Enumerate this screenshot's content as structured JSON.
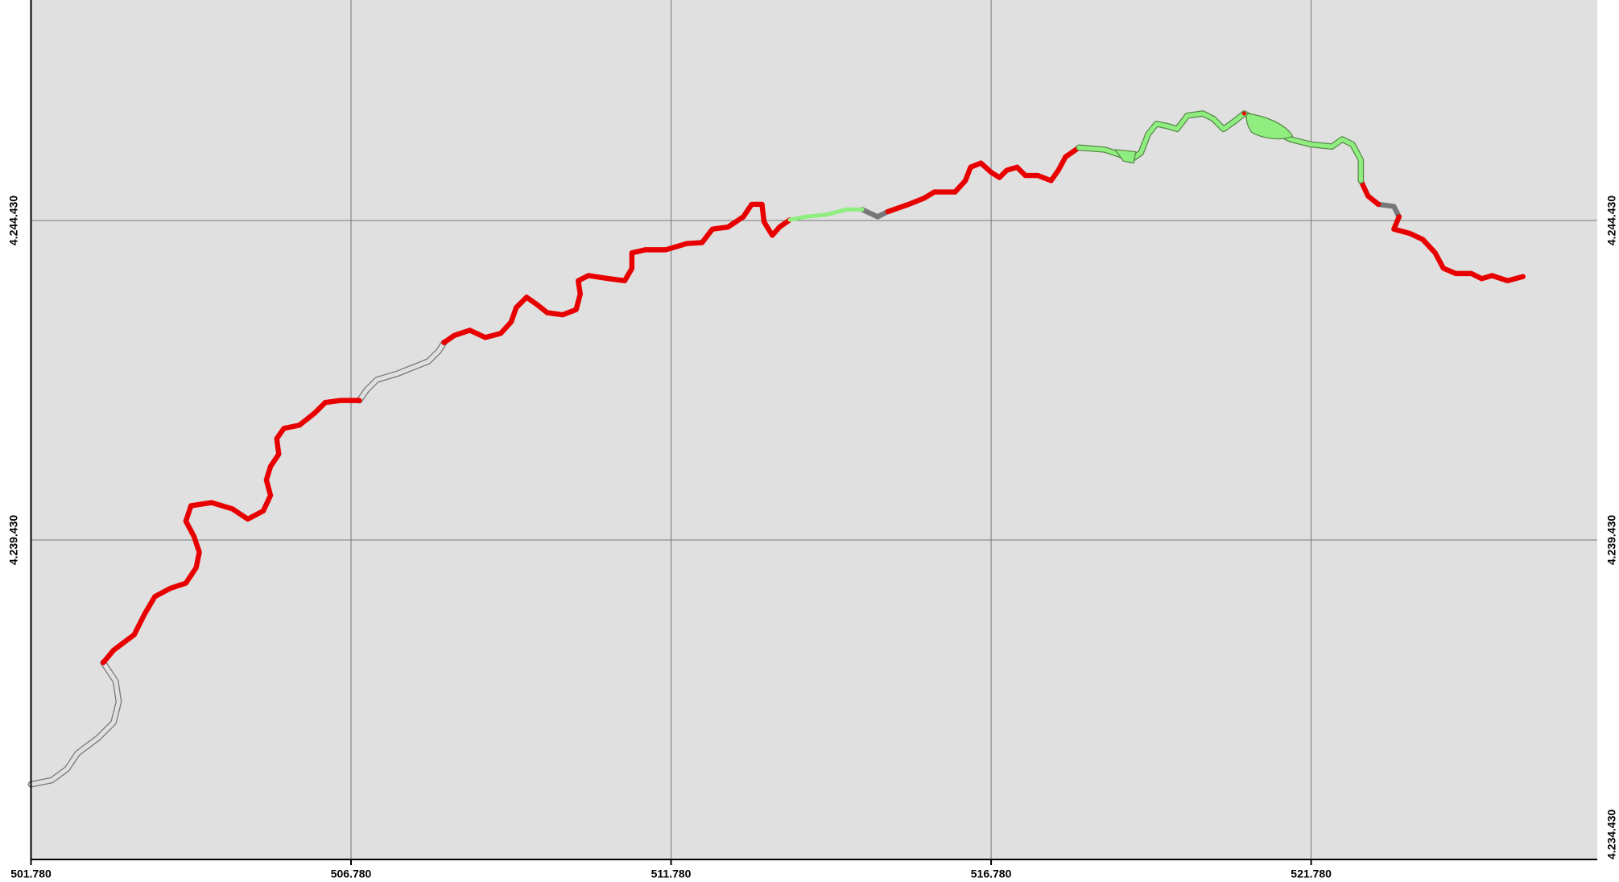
{
  "map": {
    "xlim": [
      501780,
      526250
    ],
    "ylim": [
      4234430,
      4247880
    ],
    "xticks": [
      {
        "value": 501780,
        "label": "501.780"
      },
      {
        "value": 506780,
        "label": "506.780"
      },
      {
        "value": 511780,
        "label": "511.780"
      },
      {
        "value": 516780,
        "label": "516.780"
      },
      {
        "value": 521780,
        "label": "521.780"
      }
    ],
    "yticks": [
      {
        "value": 4234430,
        "label": "4.234.430"
      },
      {
        "value": 4239430,
        "label": "4.239.430"
      },
      {
        "value": 4244430,
        "label": "4.244.430"
      }
    ],
    "grid": true
  }
}
